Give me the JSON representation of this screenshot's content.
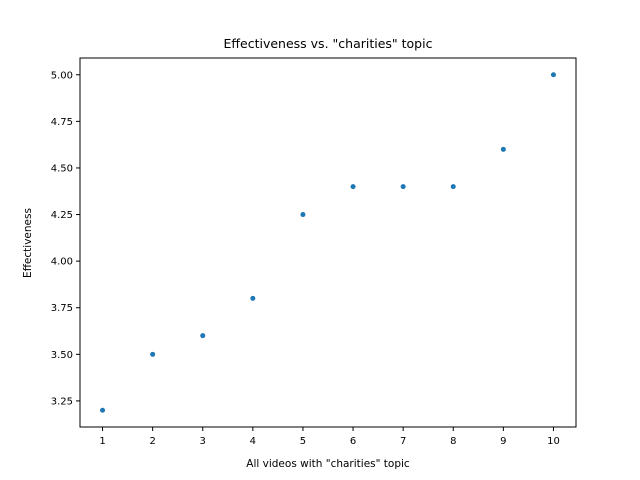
{
  "chart_data": {
    "type": "scatter",
    "title": "Effectiveness vs. \"charities\" topic",
    "xlabel": "All videos with \"charities\" topic",
    "ylabel": "Effectiveness",
    "x": [
      1,
      2,
      3,
      4,
      5,
      6,
      7,
      8,
      9,
      10
    ],
    "y": [
      3.2,
      3.5,
      3.6,
      3.8,
      4.25,
      4.4,
      4.4,
      4.4,
      4.6,
      5.0
    ],
    "xticks": [
      1,
      2,
      3,
      4,
      5,
      6,
      7,
      8,
      9,
      10
    ],
    "xtick_labels": [
      "1",
      "2",
      "3",
      "4",
      "5",
      "6",
      "7",
      "8",
      "9",
      "10"
    ],
    "yticks": [
      3.25,
      3.5,
      3.75,
      4.0,
      4.25,
      4.5,
      4.75,
      5.0
    ],
    "ytick_labels": [
      "3.25",
      "3.50",
      "3.75",
      "4.00",
      "4.25",
      "4.50",
      "4.75",
      "5.00"
    ],
    "xlim": [
      0.55,
      10.45
    ],
    "ylim": [
      3.11,
      5.09
    ],
    "grid": false,
    "marker_color": "#1f77b4"
  }
}
